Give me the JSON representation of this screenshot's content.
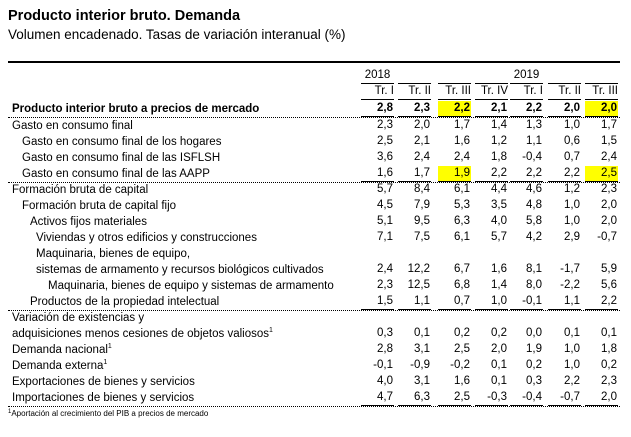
{
  "title": "Producto interior bruto. Demanda",
  "subtitle": "Volumen encadenado. Tasas de variación interanual (%)",
  "years": [
    "2018",
    "",
    "",
    "",
    "2019",
    "",
    ""
  ],
  "quarters": [
    "Tr. I",
    "Tr. II",
    "Tr. III",
    "Tr. IV",
    "Tr. I",
    "Tr. II",
    "Tr. III"
  ],
  "highlight_color": "#ffff00",
  "rows": [
    {
      "label": "Producto interior bruto a precios de mercado",
      "level": 0,
      "bold": true,
      "values": [
        "2,8",
        "2,3",
        "2,2",
        "2,1",
        "2,2",
        "2,0",
        "2,0"
      ],
      "highlight": [
        2,
        6
      ]
    },
    {
      "label": "Gasto en consumo final",
      "level": 0,
      "values": [
        "2,3",
        "2,0",
        "1,7",
        "1,4",
        "1,3",
        "1,0",
        "1,7"
      ]
    },
    {
      "label": "Gasto en consumo final de los hogares",
      "level": 1,
      "values": [
        "2,5",
        "2,1",
        "1,6",
        "1,2",
        "1,1",
        "0,6",
        "1,5"
      ]
    },
    {
      "label": "Gasto en consumo final de las ISFLSH",
      "level": 1,
      "values": [
        "3,6",
        "2,4",
        "2,4",
        "1,8",
        "-0,4",
        "0,7",
        "2,4"
      ]
    },
    {
      "label": "Gasto en consumo final de las AAPP",
      "level": 1,
      "values": [
        "1,6",
        "1,7",
        "1,9",
        "2,2",
        "2,2",
        "2,2",
        "2,5"
      ],
      "highlight": [
        2,
        6
      ]
    },
    {
      "label": "Formación bruta de capital",
      "level": 0,
      "values": [
        "5,7",
        "8,4",
        "6,1",
        "4,4",
        "4,6",
        "1,2",
        "2,3"
      ]
    },
    {
      "label": "Formación bruta de capital fijo",
      "level": 1,
      "values": [
        "4,5",
        "7,9",
        "5,3",
        "3,5",
        "4,8",
        "1,0",
        "2,0"
      ]
    },
    {
      "label": "Activos fijos  materiales",
      "level": 2,
      "values": [
        "5,1",
        "9,5",
        "6,3",
        "4,0",
        "5,8",
        "1,0",
        "2,0"
      ]
    },
    {
      "label": "Viviendas y otros edificios y construcciones",
      "level": 3,
      "values": [
        "7,1",
        "7,5",
        "6,1",
        "5,7",
        "4,2",
        "2,9",
        "-0,7"
      ]
    },
    {
      "label": "Maquinaria, bienes de equipo,",
      "level": 3,
      "values": [
        "",
        "",
        "",
        "",
        "",
        "",
        ""
      ]
    },
    {
      "label": "sistemas de armamento y recursos biológicos cultivados",
      "level": 3,
      "values": [
        "2,4",
        "12,2",
        "6,7",
        "1,6",
        "8,1",
        "-1,7",
        "5,9"
      ]
    },
    {
      "label": "Maquinaria, bienes de equipo y sistemas de armamento",
      "level": 4,
      "values": [
        "2,3",
        "12,5",
        "6,8",
        "1,4",
        "8,0",
        "-2,2",
        "5,6"
      ]
    },
    {
      "label": "Productos de la propiedad intelectual",
      "level": 2,
      "values": [
        "1,5",
        "1,1",
        "0,7",
        "1,0",
        "-0,1",
        "1,1",
        "2,2"
      ]
    },
    {
      "label": "Variación de existencias y",
      "level": 0,
      "values": [
        "",
        "",
        "",
        "",
        "",
        "",
        ""
      ]
    },
    {
      "label": "adquisiciones menos cesiones de objetos valiosos",
      "sup": "1",
      "level": 0,
      "values": [
        "0,3",
        "0,1",
        "0,2",
        "0,2",
        "0,0",
        "0,1",
        "0,1"
      ]
    },
    {
      "label": "Demanda nacional",
      "sup": "1",
      "level": 0,
      "values": [
        "2,8",
        "3,1",
        "2,5",
        "2,0",
        "1,9",
        "1,0",
        "1,8"
      ]
    },
    {
      "label": "Demanda externa",
      "sup": "1",
      "level": 0,
      "values": [
        "-0,1",
        "-0,9",
        "-0,2",
        "0,1",
        "0,2",
        "1,0",
        "0,2"
      ]
    },
    {
      "label": "Exportaciones de bienes y servicios",
      "level": 0,
      "values": [
        "4,0",
        "3,1",
        "1,6",
        "0,1",
        "0,3",
        "2,2",
        "2,3"
      ]
    },
    {
      "label": "Importaciones de bienes y servicios",
      "level": 0,
      "values": [
        "4,7",
        "6,3",
        "2,5",
        "-0,3",
        "-0,4",
        "-0,7",
        "2,0"
      ]
    }
  ],
  "footnote": {
    "mark": "1",
    "text": "Aportación al crecimiento del PIB a precios de mercado"
  }
}
